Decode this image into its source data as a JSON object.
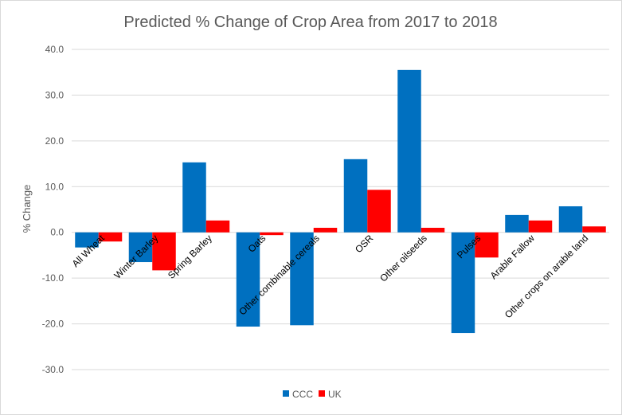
{
  "chart_data": {
    "type": "bar",
    "title": "Predicted % Change of Crop Area from 2017 to 2018",
    "ylabel": "% Change",
    "xlabel": "",
    "ylim": [
      -30,
      40
    ],
    "yticks": [
      40.0,
      30.0,
      20.0,
      10.0,
      0.0,
      -10.0,
      -20.0,
      -30.0
    ],
    "ytick_labels": [
      "40.0",
      "30.0",
      "20.0",
      "10.0",
      "0.0",
      "-10.0",
      "-20.0",
      "-30.0"
    ],
    "grid": true,
    "legend_position": "bottom",
    "categories": [
      "All Wheat",
      "Winter Barley",
      "Spring Barley",
      "Oats",
      "Other combinable cereals",
      "OSR",
      "Other oilseeds",
      "Pulses",
      "Arable Fallow",
      "Other crops on arable land"
    ],
    "series": [
      {
        "name": "CCC",
        "color": "#0070C0",
        "values": [
          -3.3,
          -6.5,
          15.3,
          -20.6,
          -20.3,
          16.0,
          35.5,
          -22.0,
          3.8,
          5.7
        ]
      },
      {
        "name": "UK",
        "color": "#FF0000",
        "values": [
          -2.0,
          -8.3,
          2.6,
          -0.6,
          1.0,
          9.3,
          1.0,
          -5.5,
          2.6,
          1.3
        ]
      }
    ]
  }
}
